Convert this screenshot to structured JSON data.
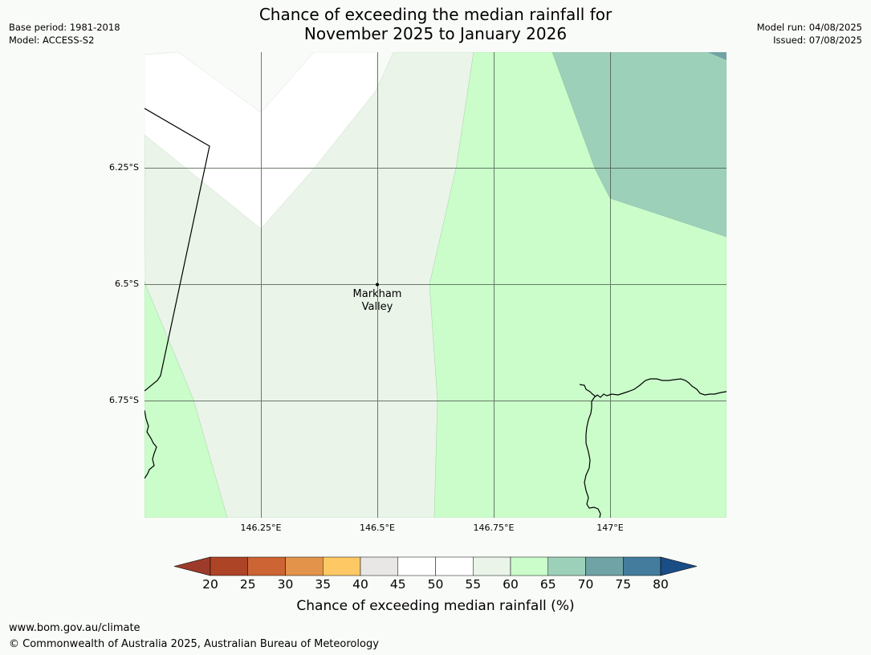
{
  "title": {
    "line1": "Chance of exceeding the median rainfall for",
    "line2": "November 2025 to January 2026"
  },
  "meta_left": {
    "base_period": "Base period: 1981-2018",
    "model": "Model: ACCESS-S2"
  },
  "meta_right": {
    "model_run": "Model run: 04/08/2025",
    "issued": "Issued: 07/08/2025"
  },
  "map": {
    "lat_labels": [
      "6.25°S",
      "6.5°S",
      "6.75°S"
    ],
    "lon_labels": [
      "146.25°E",
      "146.5°E",
      "146.75°E",
      "147°E"
    ],
    "place": {
      "line1": "Markham",
      "line2": "Valley",
      "lon": 146.5,
      "lat": -6.5
    },
    "zone_colors": {
      "45-50": "#ffffff",
      "55-60": "#eaf4e9",
      "60-65": "#cbfdcb",
      "65-70": "#9dd0b9"
    }
  },
  "colorbar": {
    "ticks": [
      "20",
      "25",
      "30",
      "35",
      "40",
      "45",
      "50",
      "55",
      "60",
      "65",
      "70",
      "75",
      "80"
    ],
    "colors": [
      "#ad4426",
      "#cd6433",
      "#e3944a",
      "#fec965",
      "#e9e7e5",
      "#ffffff",
      "#ffffff",
      "#eaf4e9",
      "#cbfdcb",
      "#9dd0b9",
      "#6fa3a6",
      "#437c9d"
    ],
    "under_color": "#9d3b2a",
    "over_color": "#1a4d85",
    "label": "Chance of exceeding median rainfall (%)"
  },
  "footer": {
    "url": "www.bom.gov.au/climate",
    "copyright": "© Commonwealth of Australia 2025, Australian Bureau of Meteorology"
  }
}
